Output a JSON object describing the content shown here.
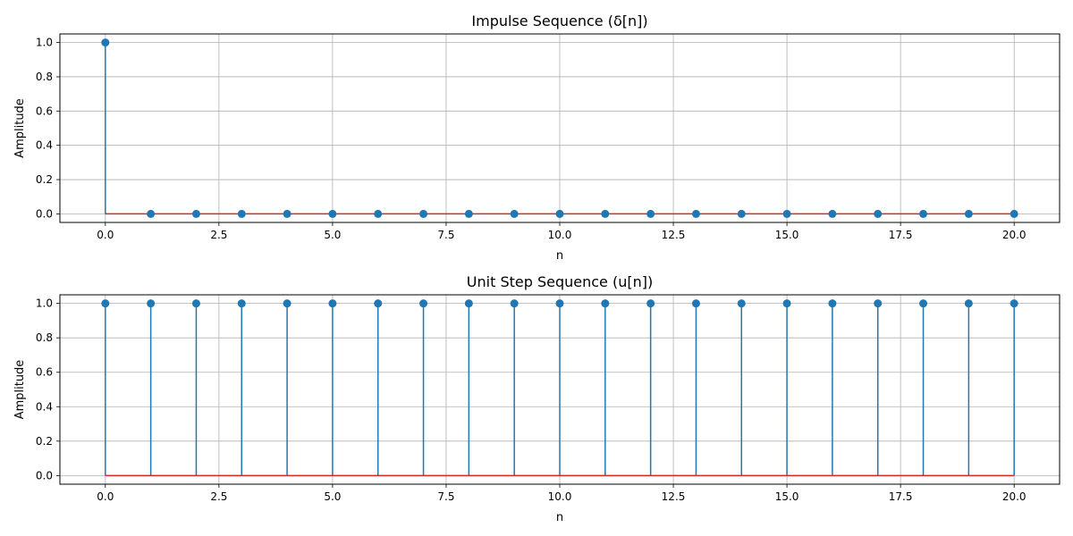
{
  "chart_data": [
    {
      "type": "stem",
      "title": "Impulse Sequence (δ[n])",
      "xlabel": "n",
      "ylabel": "Amplitude",
      "xlim": [
        -1,
        21
      ],
      "ylim": [
        -0.05,
        1.05
      ],
      "xticks": [
        0.0,
        2.5,
        5.0,
        7.5,
        10.0,
        12.5,
        15.0,
        17.5,
        20.0
      ],
      "xtick_labels": [
        "0.0",
        "2.5",
        "5.0",
        "7.5",
        "10.0",
        "12.5",
        "15.0",
        "17.5",
        "20.0"
      ],
      "yticks": [
        0.0,
        0.2,
        0.4,
        0.6,
        0.8,
        1.0
      ],
      "ytick_labels": [
        "0.0",
        "0.2",
        "0.4",
        "0.6",
        "0.8",
        "1.0"
      ],
      "grid": true,
      "color": "#1f77b4",
      "x": [
        0,
        1,
        2,
        3,
        4,
        5,
        6,
        7,
        8,
        9,
        10,
        11,
        12,
        13,
        14,
        15,
        16,
        17,
        18,
        19,
        20
      ],
      "y": [
        1,
        0,
        0,
        0,
        0,
        0,
        0,
        0,
        0,
        0,
        0,
        0,
        0,
        0,
        0,
        0,
        0,
        0,
        0,
        0,
        0
      ]
    },
    {
      "type": "stem",
      "title": "Unit Step Sequence (u[n])",
      "xlabel": "n",
      "ylabel": "Amplitude",
      "xlim": [
        -1,
        21
      ],
      "ylim": [
        -0.05,
        1.05
      ],
      "xticks": [
        0.0,
        2.5,
        5.0,
        7.5,
        10.0,
        12.5,
        15.0,
        17.5,
        20.0
      ],
      "xtick_labels": [
        "0.0",
        "2.5",
        "5.0",
        "7.5",
        "10.0",
        "12.5",
        "15.0",
        "17.5",
        "20.0"
      ],
      "yticks": [
        0.0,
        0.2,
        0.4,
        0.6,
        0.8,
        1.0
      ],
      "ytick_labels": [
        "0.0",
        "0.2",
        "0.4",
        "0.6",
        "0.8",
        "1.0"
      ],
      "grid": true,
      "color": "#1f77b4",
      "x": [
        0,
        1,
        2,
        3,
        4,
        5,
        6,
        7,
        8,
        9,
        10,
        11,
        12,
        13,
        14,
        15,
        16,
        17,
        18,
        19,
        20
      ],
      "y": [
        1,
        1,
        1,
        1,
        1,
        1,
        1,
        1,
        1,
        1,
        1,
        1,
        1,
        1,
        1,
        1,
        1,
        1,
        1,
        1,
        1
      ]
    }
  ]
}
